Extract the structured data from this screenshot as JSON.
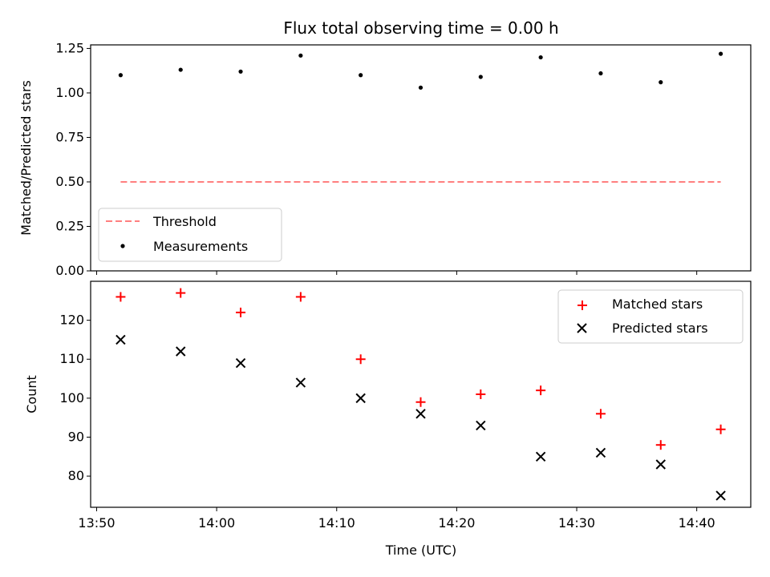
{
  "chart_data": [
    {
      "type": "scatter",
      "title": "Flux total observing time = 0.00 h",
      "xlabel": "",
      "ylabel": "Matched/Predicted stars",
      "x": [
        "13:52",
        "13:57",
        "14:02",
        "14:07",
        "14:12",
        "14:17",
        "14:22",
        "14:27",
        "14:32",
        "14:37",
        "14:42"
      ],
      "ylim": [
        0.0,
        1.27
      ],
      "yticks": [
        "0.00",
        "0.25",
        "0.50",
        "0.75",
        "1.00",
        "1.25"
      ],
      "series": [
        {
          "name": "Measurements",
          "color": "#000000",
          "marker": "dot",
          "values": [
            1.1,
            1.13,
            1.12,
            1.21,
            1.1,
            1.03,
            1.09,
            1.2,
            1.11,
            1.06,
            1.22
          ]
        },
        {
          "name": "Threshold",
          "color": "#ff7f7f",
          "marker": "dashed-line",
          "values": [
            0.5,
            0.5
          ]
        }
      ],
      "legend": [
        "Threshold",
        "Measurements"
      ],
      "legend_position": "lower-left"
    },
    {
      "type": "scatter",
      "title": "",
      "xlabel": "Time (UTC)",
      "ylabel": "Count",
      "x": [
        "13:52",
        "13:57",
        "14:02",
        "14:07",
        "14:12",
        "14:17",
        "14:22",
        "14:27",
        "14:32",
        "14:37",
        "14:42"
      ],
      "ylim": [
        72,
        130
      ],
      "yticks": [
        "80",
        "90",
        "100",
        "110",
        "120"
      ],
      "series": [
        {
          "name": "Matched stars",
          "color": "#ff0000",
          "marker": "plus",
          "values": [
            126,
            127,
            122,
            126,
            110,
            99,
            101,
            102,
            96,
            88,
            92
          ]
        },
        {
          "name": "Predicted stars",
          "color": "#000000",
          "marker": "x",
          "values": [
            115,
            112,
            109,
            104,
            100,
            96,
            93,
            85,
            86,
            83,
            75
          ]
        }
      ],
      "legend": [
        "Matched stars",
        "Predicted stars"
      ],
      "legend_position": "upper-right"
    }
  ],
  "xaxis": {
    "ticks": [
      "13:50",
      "14:00",
      "14:10",
      "14:20",
      "14:30",
      "14:40"
    ],
    "range_minutes": [
      829.5,
      884.5
    ]
  }
}
